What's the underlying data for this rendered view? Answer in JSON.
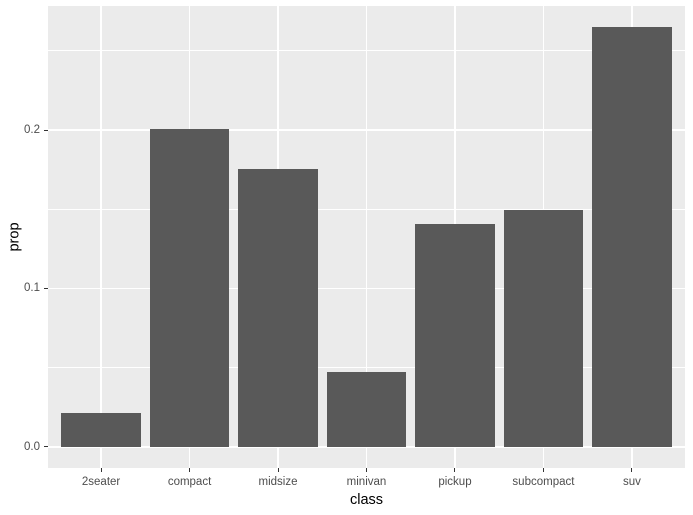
{
  "chart_data": {
    "type": "bar",
    "title": "",
    "xlabel": "class",
    "ylabel": "prop",
    "categories": [
      "2seater",
      "compact",
      "midsize",
      "minivan",
      "pickup",
      "subcompact",
      "suv"
    ],
    "values": [
      0.0214,
      0.2009,
      0.1752,
      0.047,
      0.141,
      0.1496,
      0.265
    ],
    "x_tick_labels": [
      "2seater",
      "compact",
      "midsize",
      "minivan",
      "pickup",
      "subcompact",
      "suv"
    ],
    "y_tick_labels": [
      "0.0",
      "0.1",
      "0.2"
    ],
    "y_ticks_major": [
      0.0,
      0.1,
      0.2
    ],
    "y_ticks_minor": [
      0.05,
      0.15,
      0.25
    ],
    "ylim": [
      -0.0133,
      0.2783
    ],
    "grid": "on",
    "legend": "none",
    "colors": {
      "bar_fill": "#595959",
      "panel_background": "#ebebeb",
      "gridline": "#ffffff",
      "axis_text": "#4d4d4d",
      "axis_title": "#000000",
      "tick_mark": "#333333",
      "page_background": "#ffffff"
    }
  }
}
